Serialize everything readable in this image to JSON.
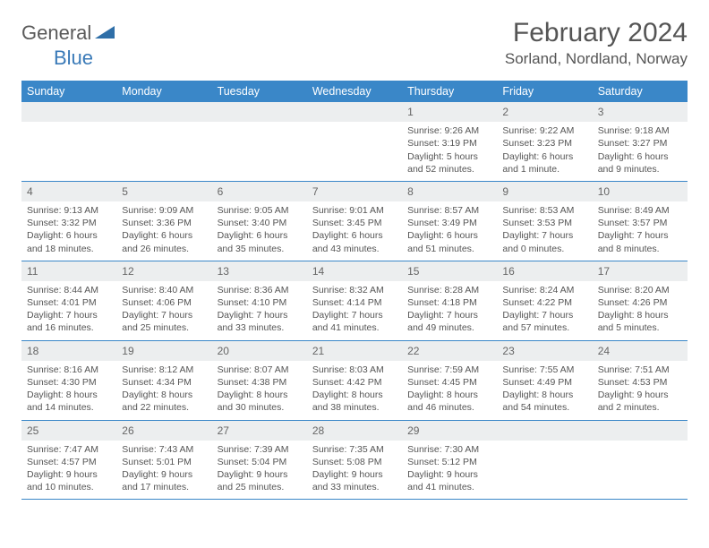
{
  "logo": {
    "general": "General",
    "blue": "Blue"
  },
  "title": "February 2024",
  "location": "Sorland, Nordland, Norway",
  "colors": {
    "header_bg": "#3a87c8",
    "header_text": "#ffffff",
    "daynum_bg": "#eceeef",
    "text": "#555555",
    "rule": "#3a87c8"
  },
  "dayHeaders": [
    "Sunday",
    "Monday",
    "Tuesday",
    "Wednesday",
    "Thursday",
    "Friday",
    "Saturday"
  ],
  "weeks": [
    [
      null,
      null,
      null,
      null,
      {
        "n": "1",
        "sr": "9:26 AM",
        "ss": "3:19 PM",
        "dl": "5 hours and 52 minutes."
      },
      {
        "n": "2",
        "sr": "9:22 AM",
        "ss": "3:23 PM",
        "dl": "6 hours and 1 minute."
      },
      {
        "n": "3",
        "sr": "9:18 AM",
        "ss": "3:27 PM",
        "dl": "6 hours and 9 minutes."
      }
    ],
    [
      {
        "n": "4",
        "sr": "9:13 AM",
        "ss": "3:32 PM",
        "dl": "6 hours and 18 minutes."
      },
      {
        "n": "5",
        "sr": "9:09 AM",
        "ss": "3:36 PM",
        "dl": "6 hours and 26 minutes."
      },
      {
        "n": "6",
        "sr": "9:05 AM",
        "ss": "3:40 PM",
        "dl": "6 hours and 35 minutes."
      },
      {
        "n": "7",
        "sr": "9:01 AM",
        "ss": "3:45 PM",
        "dl": "6 hours and 43 minutes."
      },
      {
        "n": "8",
        "sr": "8:57 AM",
        "ss": "3:49 PM",
        "dl": "6 hours and 51 minutes."
      },
      {
        "n": "9",
        "sr": "8:53 AM",
        "ss": "3:53 PM",
        "dl": "7 hours and 0 minutes."
      },
      {
        "n": "10",
        "sr": "8:49 AM",
        "ss": "3:57 PM",
        "dl": "7 hours and 8 minutes."
      }
    ],
    [
      {
        "n": "11",
        "sr": "8:44 AM",
        "ss": "4:01 PM",
        "dl": "7 hours and 16 minutes."
      },
      {
        "n": "12",
        "sr": "8:40 AM",
        "ss": "4:06 PM",
        "dl": "7 hours and 25 minutes."
      },
      {
        "n": "13",
        "sr": "8:36 AM",
        "ss": "4:10 PM",
        "dl": "7 hours and 33 minutes."
      },
      {
        "n": "14",
        "sr": "8:32 AM",
        "ss": "4:14 PM",
        "dl": "7 hours and 41 minutes."
      },
      {
        "n": "15",
        "sr": "8:28 AM",
        "ss": "4:18 PM",
        "dl": "7 hours and 49 minutes."
      },
      {
        "n": "16",
        "sr": "8:24 AM",
        "ss": "4:22 PM",
        "dl": "7 hours and 57 minutes."
      },
      {
        "n": "17",
        "sr": "8:20 AM",
        "ss": "4:26 PM",
        "dl": "8 hours and 5 minutes."
      }
    ],
    [
      {
        "n": "18",
        "sr": "8:16 AM",
        "ss": "4:30 PM",
        "dl": "8 hours and 14 minutes."
      },
      {
        "n": "19",
        "sr": "8:12 AM",
        "ss": "4:34 PM",
        "dl": "8 hours and 22 minutes."
      },
      {
        "n": "20",
        "sr": "8:07 AM",
        "ss": "4:38 PM",
        "dl": "8 hours and 30 minutes."
      },
      {
        "n": "21",
        "sr": "8:03 AM",
        "ss": "4:42 PM",
        "dl": "8 hours and 38 minutes."
      },
      {
        "n": "22",
        "sr": "7:59 AM",
        "ss": "4:45 PM",
        "dl": "8 hours and 46 minutes."
      },
      {
        "n": "23",
        "sr": "7:55 AM",
        "ss": "4:49 PM",
        "dl": "8 hours and 54 minutes."
      },
      {
        "n": "24",
        "sr": "7:51 AM",
        "ss": "4:53 PM",
        "dl": "9 hours and 2 minutes."
      }
    ],
    [
      {
        "n": "25",
        "sr": "7:47 AM",
        "ss": "4:57 PM",
        "dl": "9 hours and 10 minutes."
      },
      {
        "n": "26",
        "sr": "7:43 AM",
        "ss": "5:01 PM",
        "dl": "9 hours and 17 minutes."
      },
      {
        "n": "27",
        "sr": "7:39 AM",
        "ss": "5:04 PM",
        "dl": "9 hours and 25 minutes."
      },
      {
        "n": "28",
        "sr": "7:35 AM",
        "ss": "5:08 PM",
        "dl": "9 hours and 33 minutes."
      },
      {
        "n": "29",
        "sr": "7:30 AM",
        "ss": "5:12 PM",
        "dl": "9 hours and 41 minutes."
      },
      null,
      null
    ]
  ],
  "labels": {
    "sunrise": "Sunrise:",
    "sunset": "Sunset:",
    "daylight": "Daylight:"
  }
}
